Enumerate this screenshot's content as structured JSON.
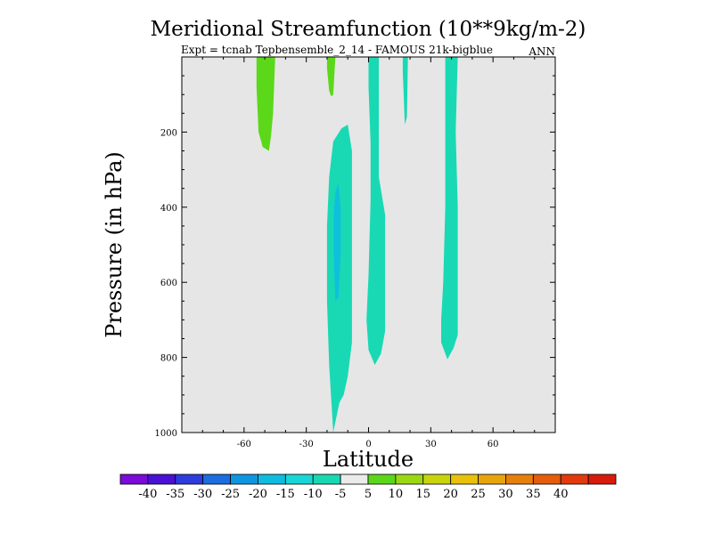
{
  "title": "Meridional Streamfunction (10**9kg/m-2)",
  "subtitle_left": "Expt = tcnab Tepbensemble_2_14 - FAMOUS 21k-bigblue",
  "subtitle_right": "ANN",
  "chart_data": {
    "type": "filled-contour",
    "title": "Meridional Streamfunction (10**9kg/m-2)",
    "xlabel": "Latitude",
    "ylabel": "Pressure (in hPa)",
    "xlim": [
      -90,
      90
    ],
    "ylim": [
      1000,
      0
    ],
    "y_inverted": true,
    "x_ticks": [
      -60,
      -30,
      0,
      30,
      60
    ],
    "x_tick_labels": [
      "-60",
      "-30",
      "0",
      "30",
      "60"
    ],
    "y_ticks": [
      200,
      400,
      600,
      800,
      1000
    ],
    "y_tick_labels": [
      "200",
      "400",
      "600",
      "800",
      "1000"
    ],
    "background_level": "-5 to 5",
    "background_color": "#e6e6e6",
    "regions": [
      {
        "name": "nh-cell-weak",
        "level": "-10 to -5",
        "color": "#19d9b4",
        "points": [
          [
            -17,
            999
          ],
          [
            -19,
            820
          ],
          [
            -20,
            650
          ],
          [
            -20,
            450
          ],
          [
            -19,
            320
          ],
          [
            -17,
            225
          ],
          [
            -13,
            190
          ],
          [
            -10,
            180
          ],
          [
            -8,
            250
          ],
          [
            -8,
            400
          ],
          [
            -8,
            600
          ],
          [
            -8,
            760
          ],
          [
            -10,
            850
          ],
          [
            -12,
            900
          ],
          [
            -14,
            920
          ]
        ]
      },
      {
        "name": "nh-cell-core",
        "level": "-15 to -10",
        "color": "#0ec0dc",
        "points": [
          [
            -16,
            650
          ],
          [
            -16.8,
            520
          ],
          [
            -16.8,
            420
          ],
          [
            -16,
            360
          ],
          [
            -14.5,
            335
          ],
          [
            -13.5,
            400
          ],
          [
            -13.5,
            530
          ],
          [
            -14.5,
            640
          ]
        ]
      },
      {
        "name": "equatorial-band",
        "level": "-10 to -5",
        "color": "#19d9b4",
        "points": [
          [
            0,
            0
          ],
          [
            5,
            0
          ],
          [
            5,
            320
          ],
          [
            8,
            420
          ],
          [
            8,
            730
          ],
          [
            6,
            790
          ],
          [
            3,
            820
          ],
          [
            0,
            780
          ],
          [
            -1,
            700
          ],
          [
            0,
            580
          ],
          [
            1,
            380
          ],
          [
            1,
            230
          ],
          [
            0,
            80
          ]
        ]
      },
      {
        "name": "sh-band",
        "level": "-10 to -5",
        "color": "#19d9b4",
        "points": [
          [
            37,
            0
          ],
          [
            43,
            0
          ],
          [
            42,
            200
          ],
          [
            43,
            400
          ],
          [
            43,
            600
          ],
          [
            43,
            740
          ],
          [
            41,
            775
          ],
          [
            38,
            805
          ],
          [
            35,
            760
          ],
          [
            35,
            700
          ],
          [
            36,
            600
          ],
          [
            37,
            400
          ],
          [
            37,
            200
          ]
        ]
      },
      {
        "name": "thin-band-20",
        "level": "-10 to -5",
        "color": "#19d9b4",
        "points": [
          [
            16.5,
            0
          ],
          [
            19,
            0
          ],
          [
            18.5,
            160
          ],
          [
            17.5,
            180
          ],
          [
            17,
            110
          ],
          [
            16.5,
            40
          ]
        ]
      },
      {
        "name": "green-left",
        "level": "5 to 10",
        "color": "#5bd81a",
        "points": [
          [
            -54,
            0
          ],
          [
            -45,
            0
          ],
          [
            -46,
            150
          ],
          [
            -47,
            210
          ],
          [
            -48,
            250
          ],
          [
            -51,
            240
          ],
          [
            -53,
            200
          ],
          [
            -54,
            80
          ]
        ]
      },
      {
        "name": "green-small",
        "level": "5 to 10",
        "color": "#5bd81a",
        "points": [
          [
            -20,
            0
          ],
          [
            -16,
            0
          ],
          [
            -17,
            100
          ],
          [
            -18,
            105
          ],
          [
            -19,
            90
          ],
          [
            -20,
            30
          ]
        ]
      }
    ],
    "colorbar": {
      "colors": [
        "#7a0bd8",
        "#4a10d6",
        "#2d3cdc",
        "#1d6ce0",
        "#0e95e0",
        "#0ebce0",
        "#18d6d6",
        "#18d8b2",
        "#ebebeb",
        "#5ad71a",
        "#9bd812",
        "#c8d40c",
        "#e8c10a",
        "#e8a40a",
        "#e67f0b",
        "#e45c0c",
        "#e23a0c",
        "#d81a0c"
      ],
      "labels": [
        "-40",
        "-35",
        "-30",
        "-25",
        "-20",
        "-15",
        "-10",
        "-5",
        "5",
        "10",
        "15",
        "20",
        "25",
        "30",
        "35",
        "40"
      ]
    }
  }
}
